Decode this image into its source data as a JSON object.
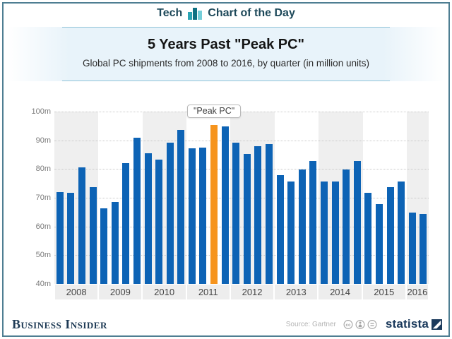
{
  "masthead": {
    "section": "Tech",
    "title": "Chart of the Day"
  },
  "title": "5 Years Past \"Peak PC\"",
  "subtitle": "Global PC shipments from 2008 to 2016, by quarter (in million units)",
  "annotation": "\"Peak PC\"",
  "footer": {
    "publisher": "Business Insider",
    "source": "Source: Gartner",
    "brand": "statista"
  },
  "colors": {
    "bar": "#0d63b5",
    "peak_bar": "#f6941d",
    "band_shade": "#efefef",
    "frame": "#4e7e92",
    "masthead_text": "#1d4859",
    "brand_navy": "#1b3a5c"
  },
  "chart_data": {
    "type": "bar",
    "title": "5 Years Past \"Peak PC\"",
    "subtitle": "Global PC shipments from 2008 to 2016, by quarter (in million units)",
    "unit": "million units",
    "ylim": [
      40,
      100
    ],
    "yticks": [
      "100m",
      "90m",
      "80m",
      "70m",
      "60m",
      "50m",
      "40m"
    ],
    "grid": "dotted horizontal",
    "years": [
      {
        "label": "2008",
        "quarters": 4,
        "shaded": true
      },
      {
        "label": "2009",
        "quarters": 4,
        "shaded": false
      },
      {
        "label": "2010",
        "quarters": 4,
        "shaded": true
      },
      {
        "label": "2011",
        "quarters": 4,
        "shaded": false
      },
      {
        "label": "2012",
        "quarters": 4,
        "shaded": true
      },
      {
        "label": "2013",
        "quarters": 4,
        "shaded": false
      },
      {
        "label": "2014",
        "quarters": 4,
        "shaded": true
      },
      {
        "label": "2015",
        "quarters": 4,
        "shaded": false
      },
      {
        "label": "2016",
        "quarters": 2,
        "shaded": true
      }
    ],
    "categories": [
      "2008 Q1",
      "2008 Q2",
      "2008 Q3",
      "2008 Q4",
      "2009 Q1",
      "2009 Q2",
      "2009 Q3",
      "2009 Q4",
      "2010 Q1",
      "2010 Q2",
      "2010 Q3",
      "2010 Q4",
      "2011 Q1",
      "2011 Q2",
      "2011 Q3",
      "2011 Q4",
      "2012 Q1",
      "2012 Q2",
      "2012 Q3",
      "2012 Q4",
      "2013 Q1",
      "2013 Q2",
      "2013 Q3",
      "2013 Q4",
      "2014 Q1",
      "2014 Q2",
      "2014 Q3",
      "2014 Q4",
      "2015 Q1",
      "2015 Q2",
      "2015 Q3",
      "2015 Q4",
      "2016 Q1",
      "2016 Q2"
    ],
    "values": [
      71.9,
      71.7,
      80.6,
      73.7,
      66.2,
      68.6,
      82.1,
      90.8,
      85.4,
      83.4,
      89.1,
      93.6,
      87.3,
      87.4,
      95.4,
      94.9,
      89.3,
      85.2,
      87.9,
      88.7,
      77.9,
      75.6,
      79.8,
      82.8,
      75.6,
      75.6,
      79.9,
      82.7,
      71.8,
      67.9,
      73.6,
      75.6,
      64.8,
      64.4
    ],
    "peak_index": 14,
    "peak_label": "\"Peak PC\""
  }
}
